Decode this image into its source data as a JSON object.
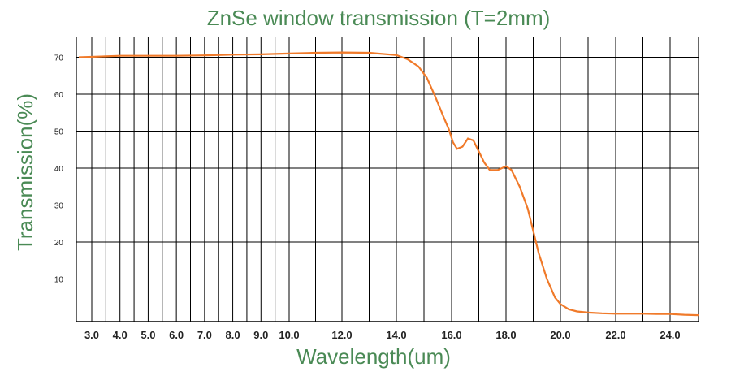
{
  "chart_data": {
    "type": "line",
    "title": "ZnSe window transmission (T=2mm)",
    "xlabel": "Wavelength(um)",
    "ylabel": "Transmission(%)",
    "xlim": [
      2.6,
      25.0
    ],
    "ylim": [
      0,
      76
    ],
    "grid": true,
    "x_ticks": [
      3.0,
      4.0,
      5.0,
      6.0,
      7.0,
      8.0,
      9.0,
      10.0,
      12.0,
      14.0,
      16.0,
      18.0,
      20.0,
      22.0,
      24.0
    ],
    "x_tick_labels": [
      "3.0",
      "4.0",
      "5.0",
      "6.0",
      "7.0",
      "8.0",
      "9.0",
      "10.0",
      "12.0",
      "14.0",
      "16.0",
      "18.0",
      "20.0",
      "22.0",
      "24.0"
    ],
    "y_ticks": [
      10,
      20,
      30,
      40,
      50,
      60,
      70
    ],
    "y_tick_labels": [
      "10",
      "20",
      "30",
      "40",
      "50",
      "60",
      "70"
    ],
    "colors": {
      "line": "#f07a2a",
      "title": "#4a8a55",
      "grid": "#000000"
    },
    "series": [
      {
        "x": [
          2.6,
          3.0,
          4.0,
          5.0,
          6.0,
          7.0,
          8.0,
          9.0,
          10.0,
          11.0,
          12.0,
          13.0,
          14.0,
          14.4,
          14.8,
          15.1,
          15.4,
          15.7,
          15.9,
          16.05,
          16.2,
          16.4,
          16.6,
          16.8,
          17.0,
          17.2,
          17.4,
          17.7,
          18.0,
          18.2,
          18.5,
          18.8,
          19.0,
          19.2,
          19.5,
          19.8,
          20.0,
          20.3,
          20.6,
          21.0,
          21.5,
          22.0,
          22.5,
          23.0,
          23.5,
          24.0,
          24.5,
          25.0
        ],
        "y": [
          70.0,
          70.1,
          70.4,
          70.4,
          70.4,
          70.5,
          70.7,
          70.8,
          71.0,
          71.2,
          71.3,
          71.2,
          70.6,
          69.5,
          67.5,
          64.5,
          59.5,
          54.0,
          50.5,
          47.0,
          45.2,
          45.8,
          48.0,
          47.5,
          44.5,
          41.5,
          39.5,
          39.5,
          40.5,
          39.5,
          35.0,
          29.0,
          23.0,
          17.0,
          10.0,
          5.0,
          3.2,
          1.8,
          1.2,
          0.9,
          0.7,
          0.6,
          0.6,
          0.6,
          0.5,
          0.5,
          0.3,
          0.2
        ]
      }
    ]
  }
}
